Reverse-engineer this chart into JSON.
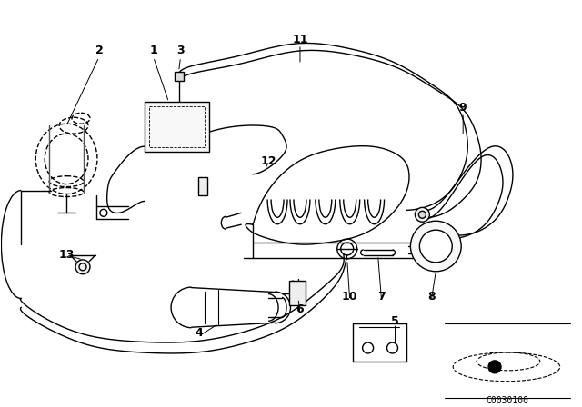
{
  "bg_color": "#ffffff",
  "line_color": "#000000",
  "diagram_code": "C0030100",
  "fig_width": 6.4,
  "fig_height": 4.48,
  "dpi": 100,
  "labels": [
    [
      "2",
      108,
      55
    ],
    [
      "1",
      168,
      55
    ],
    [
      "3",
      198,
      55
    ],
    [
      "11",
      330,
      42
    ],
    [
      "12",
      295,
      178
    ],
    [
      "9",
      510,
      118
    ],
    [
      "4",
      218,
      368
    ],
    [
      "5",
      435,
      355
    ],
    [
      "6",
      330,
      342
    ],
    [
      "7",
      420,
      328
    ],
    [
      "8",
      475,
      328
    ],
    [
      "10",
      385,
      328
    ],
    [
      "13",
      72,
      282
    ]
  ]
}
